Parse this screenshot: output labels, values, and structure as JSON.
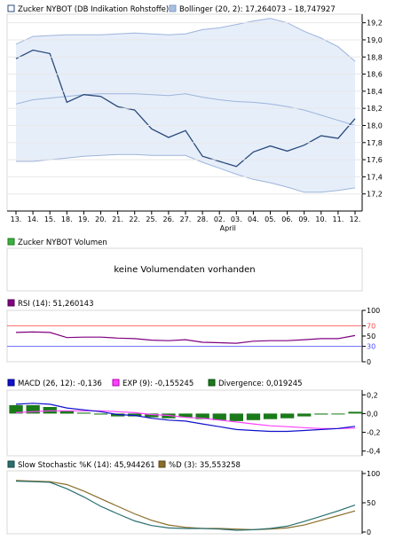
{
  "chart_data": [
    {
      "type": "line",
      "panel": "price",
      "legend": [
        {
          "label": "Zucker NYBOT (DB Indikation Rohstoffe)",
          "color": "#2b4a7a"
        },
        {
          "label": "Bollinger (20, 2): 17,264073 – 18,747927",
          "color": "#aac0e0"
        }
      ],
      "x": [
        "13.",
        "14.",
        "15.",
        "18.",
        "19.",
        "20.",
        "21.",
        "22.",
        "25.",
        "26.",
        "27.",
        "28.",
        "02.",
        "03.",
        "04.",
        "05.",
        "06.",
        "09.",
        "10.",
        "11.",
        "12."
      ],
      "x_month_label": {
        "text": "April",
        "under": "02."
      },
      "ylim": [
        17.0,
        19.3
      ],
      "yticks": [
        "17,2",
        "17,4",
        "17,6",
        "17,8",
        "18,0",
        "18,2",
        "18,4",
        "18,6",
        "18,8",
        "19,0",
        "19,2"
      ],
      "series": [
        {
          "role": "price",
          "values": [
            18.78,
            18.88,
            18.84,
            18.27,
            18.36,
            18.34,
            18.22,
            18.18,
            17.96,
            17.86,
            17.94,
            17.64,
            17.58,
            17.52,
            17.69,
            17.76,
            17.7,
            17.77,
            17.88,
            17.85,
            18.08
          ]
        },
        {
          "role": "band-upper",
          "values": [
            18.95,
            19.04,
            19.05,
            19.06,
            19.06,
            19.06,
            19.07,
            19.08,
            19.07,
            19.06,
            19.07,
            19.12,
            19.14,
            19.18,
            19.22,
            19.25,
            19.2,
            19.1,
            19.02,
            18.92,
            18.75
          ]
        },
        {
          "role": "band-middle",
          "values": [
            18.25,
            18.3,
            18.32,
            18.34,
            18.36,
            18.37,
            18.37,
            18.37,
            18.36,
            18.35,
            18.37,
            18.33,
            18.3,
            18.28,
            18.27,
            18.25,
            18.22,
            18.18,
            18.12,
            18.06,
            18.0
          ]
        },
        {
          "role": "band-lower",
          "values": [
            17.58,
            17.58,
            17.6,
            17.62,
            17.64,
            17.65,
            17.66,
            17.66,
            17.65,
            17.65,
            17.65,
            17.57,
            17.5,
            17.43,
            17.37,
            17.33,
            17.28,
            17.22,
            17.22,
            17.24,
            17.27
          ]
        }
      ]
    },
    {
      "type": "bar",
      "panel": "volume",
      "legend": [
        {
          "label": "Zucker NYBOT Volumen",
          "color": "#3cb043"
        }
      ],
      "message": "keine Volumendaten vorhanden"
    },
    {
      "type": "line",
      "panel": "rsi",
      "legend": [
        {
          "label": "RSI (14): 51,260143",
          "color": "#800080"
        }
      ],
      "ylim": [
        0,
        100
      ],
      "yticks": [
        "100",
        "70",
        "50",
        "30",
        "0"
      ],
      "reference_lines": [
        {
          "value": 70,
          "color": "#ff6a6a",
          "label": "70"
        },
        {
          "value": 30,
          "color": "#6a6aff",
          "label": "30"
        }
      ],
      "values": [
        57,
        58,
        57,
        47,
        48,
        48,
        46,
        45,
        42,
        41,
        43,
        38,
        37,
        36,
        40,
        41,
        41,
        43,
        45,
        45,
        51
      ]
    },
    {
      "type": "bar",
      "panel": "macd",
      "legend": [
        {
          "label": "MACD (26, 12): -0,136",
          "color": "#1010cc"
        },
        {
          "label": "EXP (9): -0,155245",
          "color": "#ff40ff"
        },
        {
          "label": "Divergence: 0,019245",
          "color": "#1a7a1a"
        }
      ],
      "ylim": [
        -0.45,
        0.25
      ],
      "yticks": [
        "0,2",
        "0,0",
        "-0,2",
        "-0,4"
      ],
      "macd": [
        0.1,
        0.11,
        0.1,
        0.06,
        0.04,
        0.02,
        -0.01,
        -0.02,
        -0.05,
        -0.07,
        -0.08,
        -0.11,
        -0.14,
        -0.17,
        -0.18,
        -0.19,
        -0.19,
        -0.18,
        -0.17,
        -0.16,
        -0.136
      ],
      "signal": [
        0.01,
        0.02,
        0.03,
        0.03,
        0.03,
        0.03,
        0.02,
        0.01,
        -0.01,
        -0.02,
        -0.04,
        -0.05,
        -0.07,
        -0.09,
        -0.11,
        -0.13,
        -0.14,
        -0.15,
        -0.16,
        -0.16,
        -0.155
      ],
      "divergence": [
        0.09,
        0.09,
        0.07,
        0.03,
        0.01,
        -0.01,
        -0.03,
        -0.03,
        -0.04,
        -0.05,
        -0.04,
        -0.06,
        -0.07,
        -0.08,
        -0.07,
        -0.06,
        -0.05,
        -0.03,
        -0.01,
        0.0,
        0.019
      ]
    },
    {
      "type": "line",
      "panel": "stochastic",
      "legend": [
        {
          "label": "Slow Stochastic %K (14): 45,944261",
          "color": "#2a6f6f"
        },
        {
          "label": "%D (3): 35,553258",
          "color": "#8a6d2a"
        }
      ],
      "ylim": [
        0,
        100
      ],
      "yticks": [
        "100",
        "50",
        "0"
      ],
      "k": [
        87,
        86,
        85,
        74,
        60,
        44,
        31,
        19,
        11,
        7,
        6,
        6,
        5,
        3,
        4,
        6,
        10,
        18,
        27,
        36,
        46
      ],
      "d": [
        88,
        87,
        86,
        81,
        70,
        57,
        44,
        31,
        20,
        12,
        8,
        6,
        6,
        5,
        4,
        5,
        7,
        12,
        20,
        28,
        36
      ]
    }
  ]
}
